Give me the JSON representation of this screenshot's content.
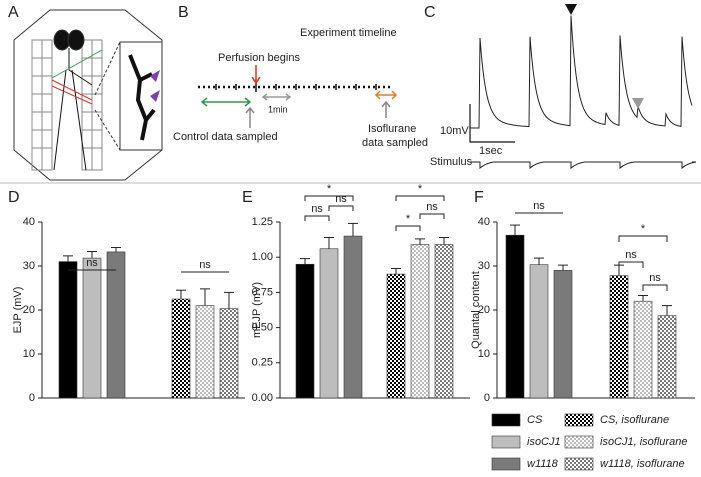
{
  "panel_labels": [
    "A",
    "B",
    "C",
    "D",
    "E",
    "F"
  ],
  "timeline": {
    "title": "Experiment timeline",
    "perfusion": "Perfusion begins",
    "minute": "1min",
    "control": "Control data sampled",
    "isoflurane": [
      "Isoflurane",
      "data sampled"
    ]
  },
  "trace": {
    "scale_y": "10mV",
    "scale_x": "1sec",
    "stimulus": "Stimulus"
  },
  "legend": [
    {
      "name": "CS",
      "color": "#000000",
      "hatched": false
    },
    {
      "name": "isoCJ1",
      "color": "#bdbdbd",
      "hatched": false
    },
    {
      "name": "w1118",
      "color": "#7a7a7a",
      "hatched": false
    },
    {
      "name": "CS, isoflurane",
      "color": "#000000",
      "hatched": true
    },
    {
      "name": "isoCJ1,  isoflurane",
      "color": "#bdbdbd",
      "hatched": true
    },
    {
      "name": "w1118, isoflurane",
      "color": "#7a7a7a",
      "hatched": true
    }
  ],
  "chart_data": [
    {
      "type": "bar",
      "ylabel": "EJP (mV)",
      "ylim": [
        0,
        40
      ],
      "yticks": [
        0,
        10,
        20,
        30,
        40
      ],
      "values": [
        31,
        31.8,
        33.2,
        22.5,
        21,
        20.3
      ],
      "errors": [
        1.3,
        1.5,
        1,
        2,
        3.8,
        3.7
      ],
      "annotations": [
        {
          "label": "ns",
          "bars": [
            0,
            2
          ]
        },
        {
          "label": "ns",
          "bars": [
            3,
            5
          ]
        }
      ]
    },
    {
      "type": "bar",
      "ylabel": "mEJP (mV)",
      "ylim": [
        0,
        1.25
      ],
      "yticks": [
        {
          "value": 0,
          "label": "0.00"
        },
        {
          "value": 0.25,
          "label": "0.25"
        },
        {
          "value": 0.5,
          "label": "0.50"
        },
        {
          "value": 0.75,
          "label": "0.75"
        },
        {
          "value": 1,
          "label": "1.00"
        },
        {
          "value": 1.25,
          "label": "1.25"
        }
      ],
      "values": [
        0.95,
        1.06,
        1.15,
        0.88,
        1.09,
        1.09
      ],
      "errors": [
        0.04,
        0.08,
        0.09,
        0.04,
        0.04,
        0.05
      ],
      "annotations": [
        {
          "label": "*",
          "bars": [
            0,
            2
          ]
        },
        {
          "label": "ns",
          "bars": [
            0,
            1
          ]
        },
        {
          "label": "ns",
          "bars": [
            1,
            2
          ]
        },
        {
          "label": "*",
          "bars": [
            3,
            5
          ]
        },
        {
          "label": "*",
          "bars": [
            3,
            4
          ]
        },
        {
          "label": "ns",
          "bars": [
            4,
            5
          ]
        }
      ]
    },
    {
      "type": "bar",
      "ylabel": "Quantal content",
      "ylim": [
        0,
        40
      ],
      "yticks": [
        0,
        10,
        20,
        30,
        40
      ],
      "values": [
        37,
        30.3,
        29,
        27.8,
        22,
        18.7
      ],
      "errors": [
        2.3,
        1.5,
        1.2,
        2.4,
        1.3,
        2.3
      ],
      "annotations": [
        {
          "label": "ns",
          "bars": [
            0,
            2
          ]
        },
        {
          "label": "*",
          "bars": [
            3,
            5
          ]
        },
        {
          "label": "ns",
          "bars": [
            3,
            4
          ]
        },
        {
          "label": "ns",
          "bars": [
            4,
            5
          ]
        }
      ]
    }
  ]
}
